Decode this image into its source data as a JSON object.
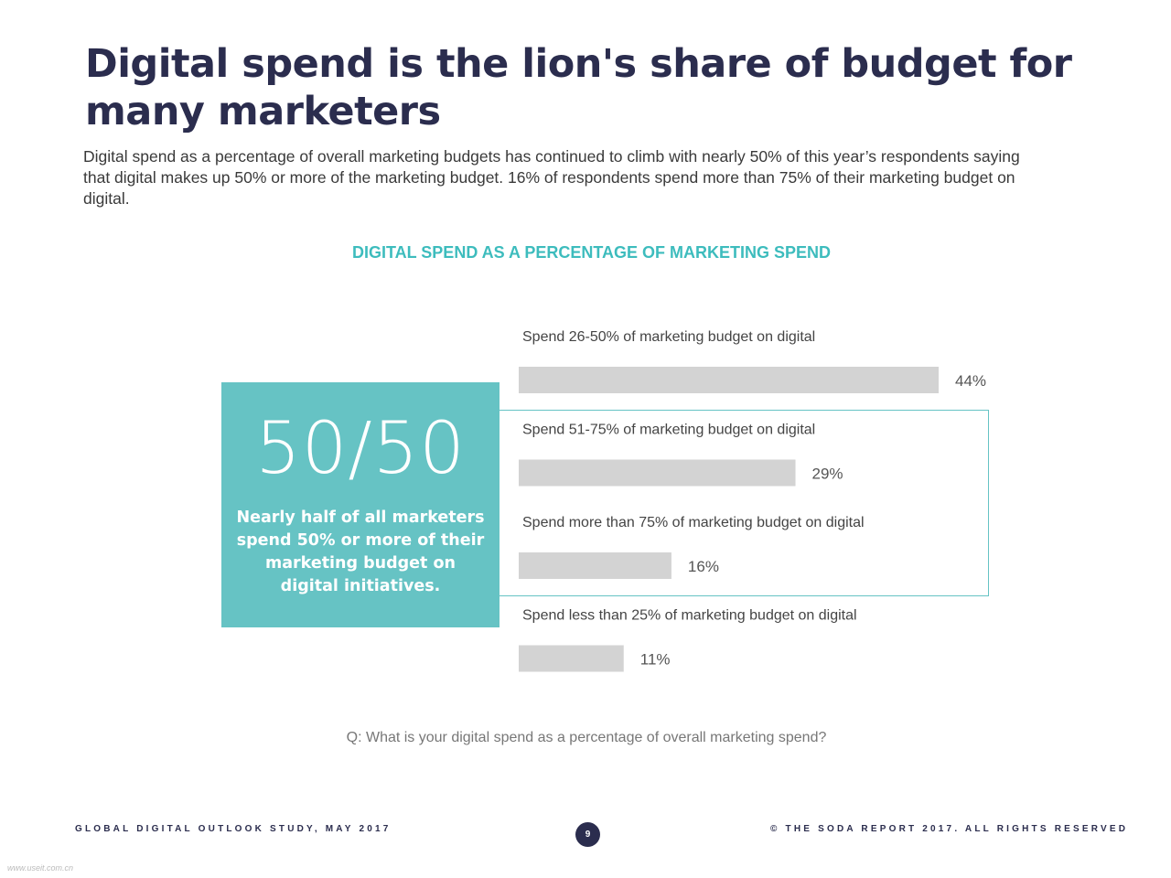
{
  "header": {
    "title": "Digital spend is the lion's share of budget for many marketers",
    "intro": "Digital spend as a percentage of overall marketing budgets has continued to climb with nearly 50% of this year’s respondents saying that digital makes up 50% or more of the marketing budget. 16% of respondents spend more than 75% of their marketing budget on digital."
  },
  "callout": {
    "headline": "50/50",
    "text": "Nearly half of all marketers spend 50% or more of their marketing budget on digital initiatives."
  },
  "chart_data": {
    "type": "bar",
    "orientation": "horizontal",
    "title": "DIGITAL SPEND AS A PERCENTAGE OF MARKETING SPEND",
    "categories": [
      "Spend 26-50% of marketing budget on digital",
      "Spend 51-75% of marketing budget on digital",
      "Spend more than 75% of marketing budget on digital",
      "Spend less than 25% of marketing budget on digital"
    ],
    "values": [
      44,
      29,
      16,
      11
    ],
    "value_labels": [
      "44%",
      "29%",
      "16%",
      "11%"
    ],
    "unit": "%",
    "xlim": [
      0,
      44
    ],
    "highlighted_categories": [
      1,
      2
    ],
    "bar_color": "#d3d3d3",
    "accent_color": "#66c3c4",
    "grid": false
  },
  "question": "Q: What is your digital spend as a percentage of overall marketing spend?",
  "footer": {
    "left": "GLOBAL DIGITAL OUTLOOK STUDY, MAY 2017",
    "page": "9",
    "right": "© THE SODA REPORT 2017. ALL RIGHTS RESERVED"
  },
  "watermark": "www.useit.com.cn",
  "colors": {
    "title": "#2b2d4e",
    "accent": "#3dbcbd",
    "callout_bg": "#66c3c4"
  }
}
